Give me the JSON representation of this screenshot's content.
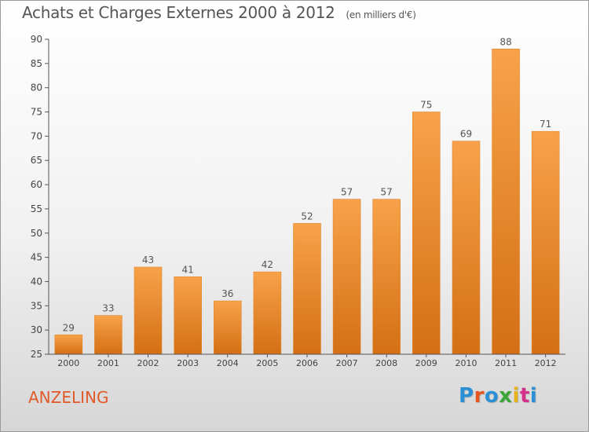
{
  "title": "Achats et Charges Externes 2000 à 2012",
  "subtitle": "(en milliers d'€)",
  "commune": "ANZELING",
  "logo": {
    "text": "Proxiti",
    "colors": [
      "#2b8fd6",
      "#e8561f",
      "#2b8fd6",
      "#3aa63a",
      "#e8b21f",
      "#d6308a",
      "#2b8fd6"
    ]
  },
  "colors": {
    "bar_top": "#f7a24a",
    "bar_bottom": "#d46f14",
    "axis": "#555555",
    "text": "#555555",
    "commune": "#e05a2a"
  },
  "chart_data": {
    "type": "bar",
    "categories": [
      "2000",
      "2001",
      "2002",
      "2003",
      "2004",
      "2005",
      "2006",
      "2007",
      "2008",
      "2009",
      "2010",
      "2011",
      "2012"
    ],
    "values": [
      29,
      33,
      43,
      41,
      36,
      42,
      52,
      57,
      57,
      75,
      69,
      88,
      71
    ],
    "ylim": [
      25,
      90
    ],
    "yticks": [
      25,
      30,
      35,
      40,
      45,
      50,
      55,
      60,
      65,
      70,
      75,
      80,
      85,
      90
    ],
    "grid": false,
    "data_labels": true
  }
}
